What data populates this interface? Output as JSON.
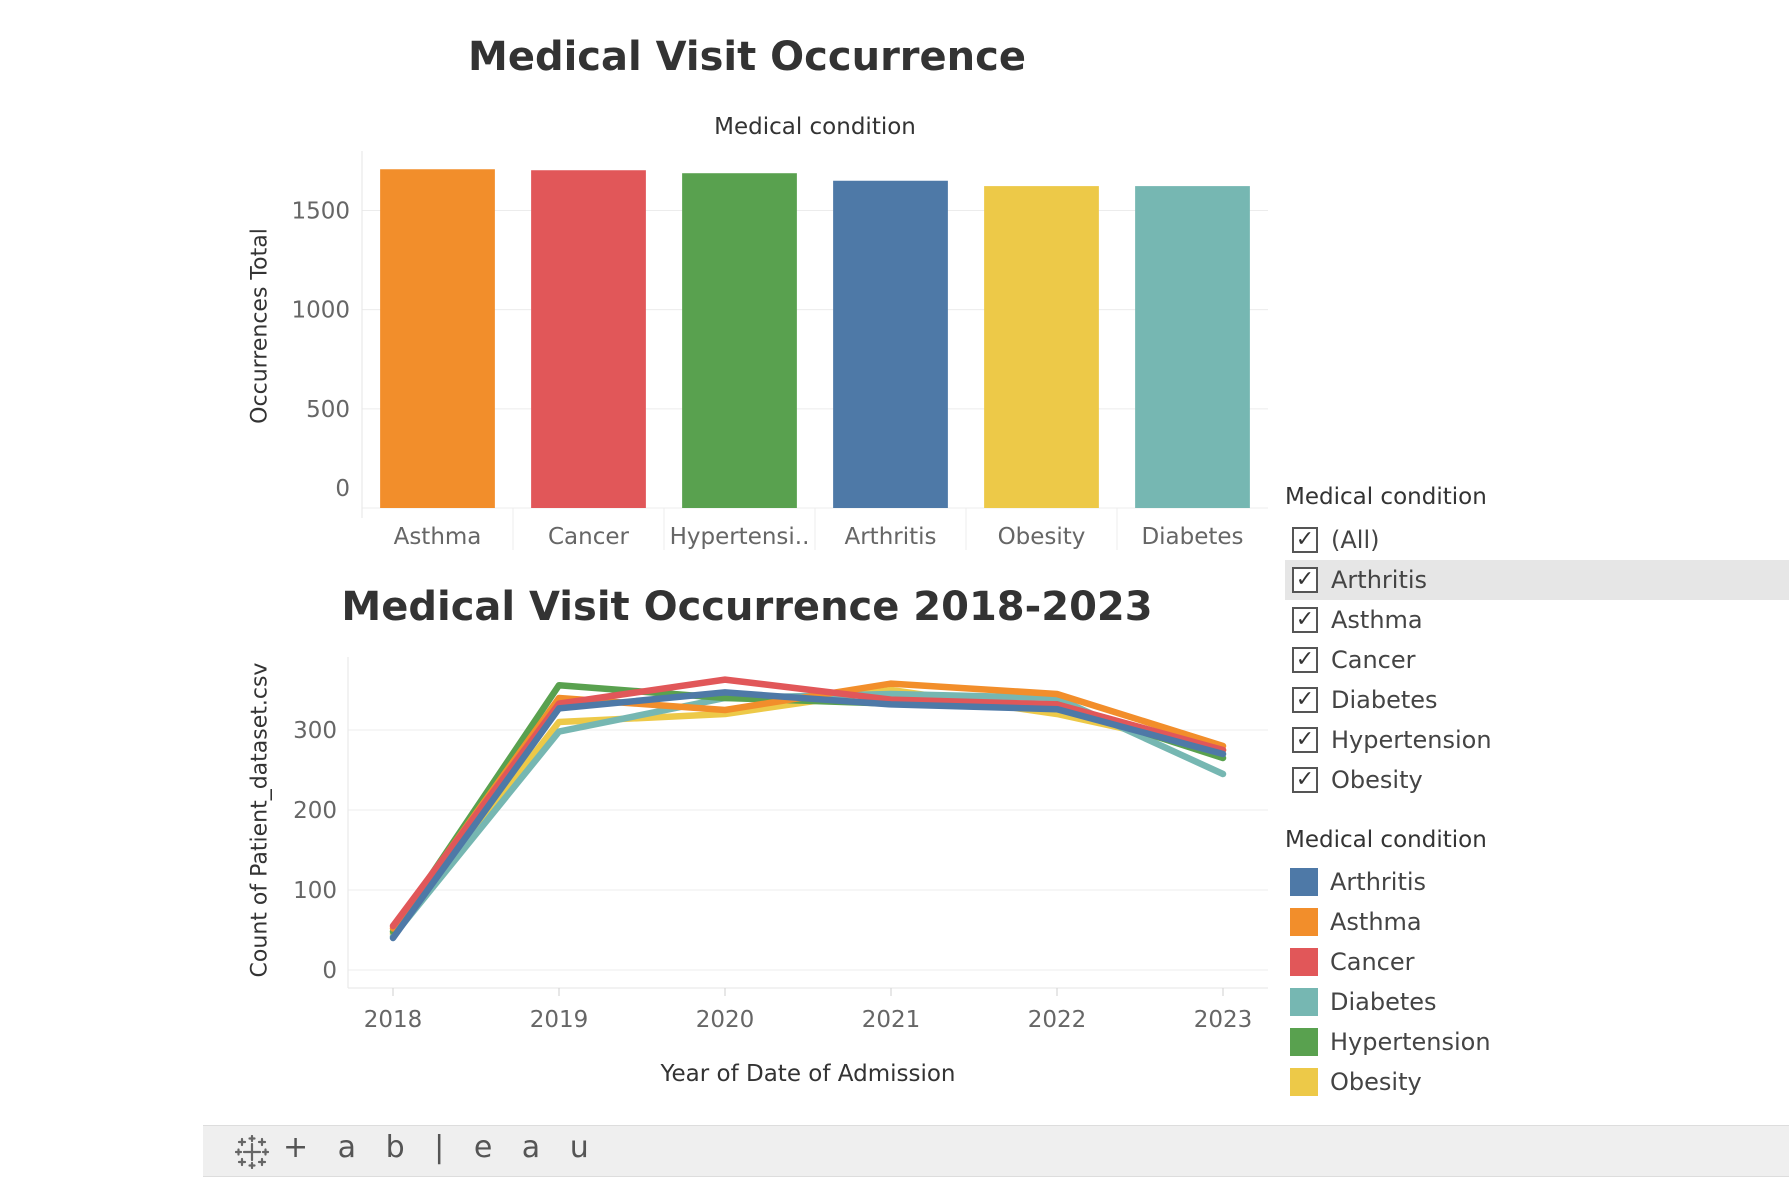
{
  "bar_chart": {
    "title": "Medical Visit Occurrence",
    "header": "Medical condition",
    "ylabel": "Occurrences Total"
  },
  "line_chart": {
    "title": "Medical Visit Occurrence 2018-2023",
    "ylabel": "Count of Patient_dataset.csv",
    "xlabel": "Year of Date of Admission"
  },
  "filter": {
    "title": "Medical condition",
    "items": [
      {
        "label": "(All)",
        "checked": true
      },
      {
        "label": "Arthritis",
        "checked": true
      },
      {
        "label": "Asthma",
        "checked": true
      },
      {
        "label": "Cancer",
        "checked": true
      },
      {
        "label": "Diabetes",
        "checked": true
      },
      {
        "label": "Hypertension",
        "checked": true
      },
      {
        "label": "Obesity",
        "checked": true
      }
    ]
  },
  "legend": {
    "title": "Medical condition",
    "items": [
      {
        "label": "Arthritis",
        "color": "#4e79a7"
      },
      {
        "label": "Asthma",
        "color": "#f28e2b"
      },
      {
        "label": "Cancer",
        "color": "#e15759"
      },
      {
        "label": "Diabetes",
        "color": "#76b7b2"
      },
      {
        "label": "Hypertension",
        "color": "#59a14f"
      },
      {
        "label": "Obesity",
        "color": "#edc948"
      }
    ]
  },
  "footer": {
    "brand": "+ a b | e a u",
    "icon": "tableau-logo-icon"
  },
  "chart_data": [
    {
      "type": "bar",
      "title": "Medical Visit Occurrence",
      "header": "Medical condition",
      "ylabel": "Occurrences Total",
      "categories": [
        "Asthma",
        "Cancer",
        "Hypertensi..",
        "Arthritis",
        "Obesity",
        "Diabetes"
      ],
      "values": [
        1708,
        1703,
        1688,
        1650,
        1623,
        1623
      ],
      "colors": [
        "#f28e2b",
        "#e15759",
        "#59a14f",
        "#4e79a7",
        "#edc948",
        "#76b7b2"
      ],
      "yticks": [
        0,
        500,
        1000,
        1500
      ],
      "ylim": [
        0,
        1800
      ],
      "grid": true
    },
    {
      "type": "line",
      "title": "Medical Visit Occurrence 2018-2023",
      "xlabel": "Year of Date of Admission",
      "ylabel": "Count of Patient_dataset.csv",
      "x": [
        "2018",
        "2019",
        "2020",
        "2021",
        "2022",
        "2023"
      ],
      "yticks": [
        0,
        100,
        200,
        300
      ],
      "ylim": [
        0,
        380
      ],
      "grid": true,
      "series": [
        {
          "name": "Obesity",
          "color": "#edc948",
          "values": [
            45,
            310,
            320,
            350,
            320,
            275
          ]
        },
        {
          "name": "Diabetes",
          "color": "#76b7b2",
          "values": [
            42,
            298,
            340,
            345,
            340,
            245
          ]
        },
        {
          "name": "Hypertension",
          "color": "#59a14f",
          "values": [
            48,
            356,
            340,
            333,
            332,
            265
          ]
        },
        {
          "name": "Asthma",
          "color": "#f28e2b",
          "values": [
            52,
            340,
            325,
            358,
            345,
            280
          ]
        },
        {
          "name": "Cancer",
          "color": "#e15759",
          "values": [
            55,
            333,
            363,
            338,
            332,
            275
          ]
        },
        {
          "name": "Arthritis",
          "color": "#4e79a7",
          "values": [
            40,
            327,
            347,
            332,
            326,
            270
          ]
        }
      ]
    }
  ]
}
